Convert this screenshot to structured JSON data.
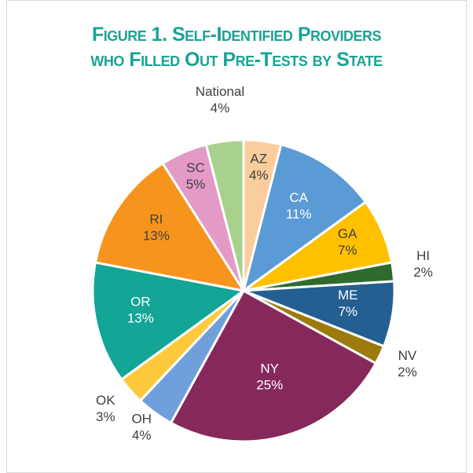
{
  "chart_data": {
    "type": "pie",
    "title": [
      "Figure 1. Self-Identified Providers",
      "who Filled Out Pre-Tests by State"
    ],
    "title_color": "#1aa394",
    "categories": [
      "AZ",
      "CA",
      "GA",
      "HI",
      "ME",
      "NV",
      "NY",
      "OH",
      "OK",
      "OR",
      "RI",
      "SC",
      "National"
    ],
    "values": [
      4,
      11,
      7,
      2,
      7,
      2,
      25,
      4,
      3,
      13,
      13,
      5,
      4
    ],
    "value_labels": [
      "4%",
      "11%",
      "7%",
      "2%",
      "7%",
      "2%",
      "25%",
      "4%",
      "3%",
      "13%",
      "13%",
      "5%",
      "4%"
    ],
    "colors": [
      "#fbcd9c",
      "#5b9bd5",
      "#ffc000",
      "#2f6b2f",
      "#255e91",
      "#9c7a0c",
      "#86285c",
      "#6fa0db",
      "#ffc93c",
      "#13a596",
      "#f7941d",
      "#e39ac6",
      "#a9d18e"
    ]
  }
}
